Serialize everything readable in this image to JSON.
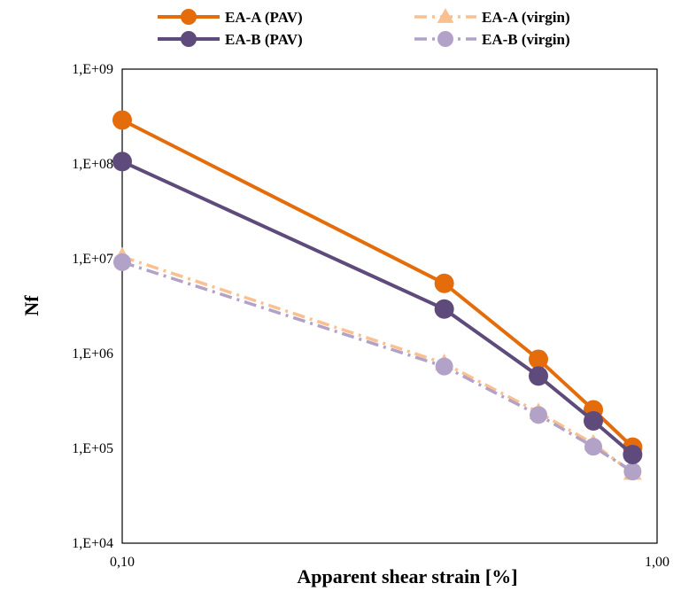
{
  "chart_data": {
    "type": "line",
    "title": "",
    "xlabel": "Apparent shear strain [%]",
    "ylabel": "Nf",
    "x_scale": "log",
    "y_scale": "log",
    "xlim": [
      0.1,
      1.0
    ],
    "ylim": [
      10000,
      1000000000
    ],
    "x_tick_values": [
      0.1,
      1.0
    ],
    "x_tick_labels": [
      "0,10",
      "1,00"
    ],
    "y_tick_values": [
      10000,
      100000,
      1000000,
      10000000,
      100000000,
      1000000000
    ],
    "y_tick_labels": [
      "1,E+04",
      "1,E+05",
      "1,E+06",
      "1,E+07",
      "1,E+08",
      "1,E+09"
    ],
    "grid": false,
    "legend_position": "top",
    "x": [
      0.1,
      0.4,
      0.6,
      0.76,
      0.9
    ],
    "series": [
      {
        "name": "EA-A (PAV)",
        "color": "#E46C0A",
        "line": "solid",
        "marker": "circle",
        "values": [
          290000000,
          5500000,
          870000,
          255000,
          103000
        ]
      },
      {
        "name": "EA-A (virgin)",
        "color": "#FAC090",
        "line": "dashdot",
        "marker": "triangle",
        "values": [
          10500000,
          790000,
          240000,
          112000,
          55000
        ]
      },
      {
        "name": "EA-B (PAV)",
        "color": "#5F4B7B",
        "line": "solid",
        "marker": "circle",
        "values": [
          106000000,
          2950000,
          580000,
          195000,
          86000
        ]
      },
      {
        "name": "EA-B (virgin)",
        "color": "#B3A2C7",
        "line": "dashdot",
        "marker": "circle",
        "values": [
          9200000,
          730000,
          225000,
          104000,
          57000
        ]
      }
    ]
  }
}
